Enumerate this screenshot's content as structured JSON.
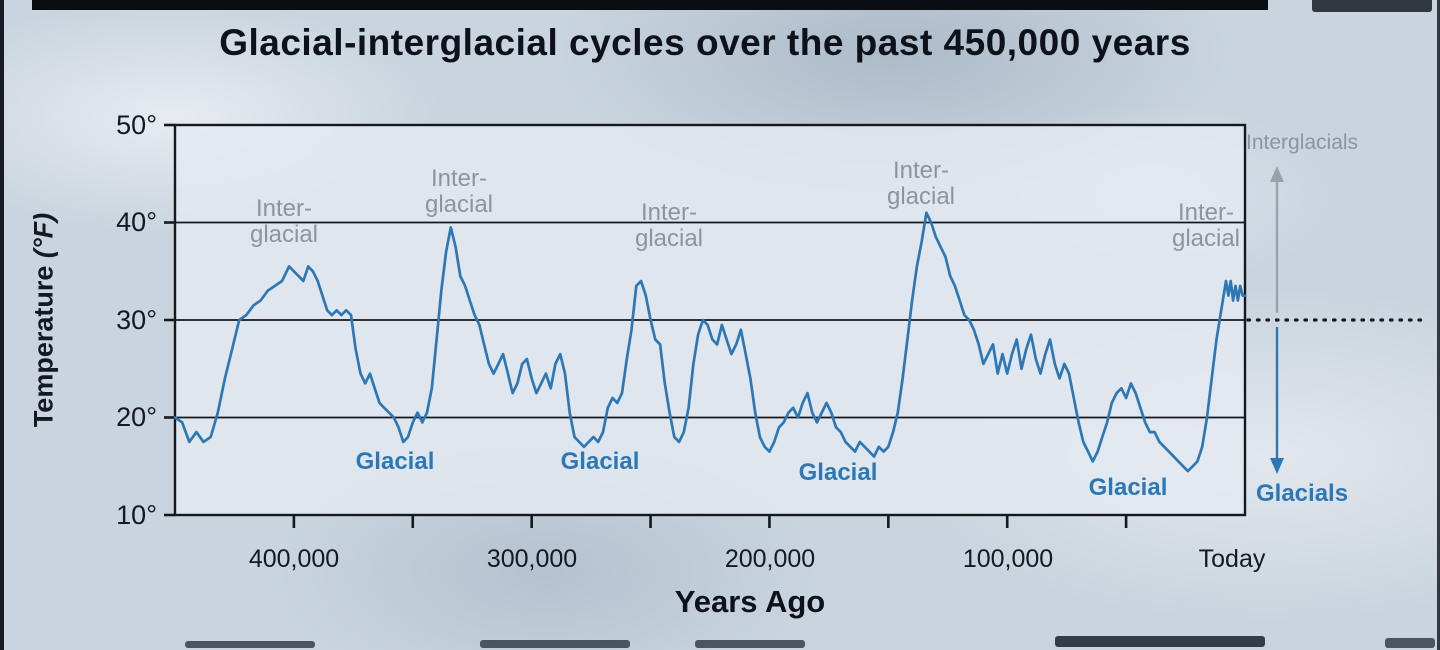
{
  "page": {
    "title": "Glacial-interglacial cycles over the past 450,000 years"
  },
  "axes": {
    "y_label_main": "Temperature",
    "y_label_unit": "(°F)",
    "y_ticks": [
      "50°",
      "40°",
      "30°",
      "20°",
      "10°"
    ],
    "x_label": "Years Ago",
    "x_tick_labels": [
      "400,000",
      "300,000",
      "200,000",
      "100,000",
      "Today"
    ]
  },
  "annotations": {
    "interglacial": {
      "line1": "Inter-",
      "line2": "glacial"
    },
    "glacial_label": "Glacial",
    "interglacials_arrow_label": "Interglacials",
    "glacials_arrow_label": "Glacials"
  },
  "colors": {
    "line": "#2e77b5",
    "glacial_text": "#2e77b5",
    "interglacial_text": "#8d949d",
    "axis": "#15181d",
    "arrow_gray": "#9aa1aa"
  },
  "chart_data": {
    "type": "line",
    "title": "Glacial-interglacial cycles over the past 450,000 years",
    "xlabel": "Years Ago",
    "ylabel": "Temperature (°F)",
    "x_unit": "ka (thousands of years before present, plotted oldest-left to Today-right)",
    "xlim_years_ago": [
      450000,
      0
    ],
    "ylim": [
      10,
      50
    ],
    "gridlines_f": [
      20,
      30,
      40
    ],
    "y_ticks_f": [
      10,
      20,
      30,
      40,
      50
    ],
    "x_ticks_ka": [
      400,
      350,
      300,
      250,
      200,
      150,
      100,
      50
    ],
    "x_tick_label_positions_ka": [
      400,
      300,
      200,
      100,
      0
    ],
    "dotted_reference_f": 30,
    "points": [
      [
        450,
        20
      ],
      [
        447,
        19.5
      ],
      [
        444,
        17.5
      ],
      [
        441,
        18.5
      ],
      [
        438,
        17.5
      ],
      [
        435,
        18
      ],
      [
        432,
        20.5
      ],
      [
        429,
        24
      ],
      [
        426,
        27
      ],
      [
        423,
        30
      ],
      [
        420,
        30.5
      ],
      [
        417,
        31.5
      ],
      [
        414,
        32
      ],
      [
        411,
        33
      ],
      [
        408,
        33.5
      ],
      [
        405,
        34
      ],
      [
        402,
        35.5
      ],
      [
        400,
        35
      ],
      [
        398,
        34.5
      ],
      [
        396,
        34
      ],
      [
        394,
        35.5
      ],
      [
        392,
        35
      ],
      [
        390,
        34
      ],
      [
        388,
        32.5
      ],
      [
        386,
        31
      ],
      [
        384,
        30.5
      ],
      [
        382,
        31
      ],
      [
        380,
        30.5
      ],
      [
        378,
        31
      ],
      [
        376,
        30.5
      ],
      [
        374,
        27
      ],
      [
        372,
        24.5
      ],
      [
        370,
        23.5
      ],
      [
        368,
        24.5
      ],
      [
        366,
        23
      ],
      [
        364,
        21.5
      ],
      [
        362,
        21
      ],
      [
        360,
        20.5
      ],
      [
        358,
        20
      ],
      [
        356,
        19
      ],
      [
        354,
        17.5
      ],
      [
        352,
        18
      ],
      [
        350,
        19.5
      ],
      [
        348,
        20.5
      ],
      [
        346,
        19.5
      ],
      [
        344,
        20.5
      ],
      [
        342,
        23
      ],
      [
        340,
        28
      ],
      [
        338,
        33
      ],
      [
        336,
        37
      ],
      [
        334,
        39.5
      ],
      [
        332,
        37.5
      ],
      [
        330,
        34.5
      ],
      [
        328,
        33.5
      ],
      [
        326,
        32
      ],
      [
        324,
        30.5
      ],
      [
        322,
        29.5
      ],
      [
        320,
        27.5
      ],
      [
        318,
        25.5
      ],
      [
        316,
        24.5
      ],
      [
        314,
        25.5
      ],
      [
        312,
        26.5
      ],
      [
        310,
        24.5
      ],
      [
        308,
        22.5
      ],
      [
        306,
        23.5
      ],
      [
        304,
        25.5
      ],
      [
        302,
        26
      ],
      [
        300,
        24
      ],
      [
        298,
        22.5
      ],
      [
        296,
        23.5
      ],
      [
        294,
        24.5
      ],
      [
        292,
        23
      ],
      [
        290,
        25.5
      ],
      [
        288,
        26.5
      ],
      [
        286,
        24.5
      ],
      [
        284,
        20.5
      ],
      [
        282,
        18
      ],
      [
        280,
        17.5
      ],
      [
        278,
        17
      ],
      [
        276,
        17.5
      ],
      [
        274,
        18
      ],
      [
        272,
        17.5
      ],
      [
        270,
        18.5
      ],
      [
        268,
        21
      ],
      [
        266,
        22
      ],
      [
        264,
        21.5
      ],
      [
        262,
        22.5
      ],
      [
        260,
        26
      ],
      [
        258,
        29
      ],
      [
        256,
        33.5
      ],
      [
        254,
        34
      ],
      [
        252,
        32.5
      ],
      [
        250,
        30
      ],
      [
        248,
        28
      ],
      [
        246,
        27.5
      ],
      [
        244,
        23.5
      ],
      [
        242,
        20.5
      ],
      [
        240,
        18
      ],
      [
        238,
        17.5
      ],
      [
        236,
        18.5
      ],
      [
        234,
        21
      ],
      [
        232,
        25.5
      ],
      [
        230,
        28.5
      ],
      [
        228,
        30
      ],
      [
        226,
        29.5
      ],
      [
        224,
        28
      ],
      [
        222,
        27.5
      ],
      [
        220,
        29.5
      ],
      [
        218,
        28
      ],
      [
        216,
        26.5
      ],
      [
        214,
        27.5
      ],
      [
        212,
        29
      ],
      [
        210,
        26.5
      ],
      [
        208,
        24
      ],
      [
        206,
        20.5
      ],
      [
        204,
        18
      ],
      [
        202,
        17
      ],
      [
        200,
        16.5
      ],
      [
        198,
        17.5
      ],
      [
        196,
        19
      ],
      [
        194,
        19.5
      ],
      [
        192,
        20.5
      ],
      [
        190,
        21
      ],
      [
        188,
        20
      ],
      [
        186,
        21.5
      ],
      [
        184,
        22.5
      ],
      [
        182,
        20.5
      ],
      [
        180,
        19.5
      ],
      [
        178,
        20.5
      ],
      [
        176,
        21.5
      ],
      [
        174,
        20.5
      ],
      [
        172,
        19
      ],
      [
        170,
        18.5
      ],
      [
        168,
        17.5
      ],
      [
        166,
        17
      ],
      [
        164,
        16.5
      ],
      [
        162,
        17.5
      ],
      [
        160,
        17
      ],
      [
        158,
        16.5
      ],
      [
        156,
        16
      ],
      [
        154,
        17
      ],
      [
        152,
        16.5
      ],
      [
        150,
        17
      ],
      [
        148,
        18.5
      ],
      [
        146,
        20.5
      ],
      [
        144,
        24
      ],
      [
        142,
        28
      ],
      [
        140,
        32
      ],
      [
        138,
        35.5
      ],
      [
        136,
        38
      ],
      [
        134,
        41
      ],
      [
        132,
        40
      ],
      [
        130,
        38.5
      ],
      [
        128,
        37.5
      ],
      [
        126,
        36.5
      ],
      [
        124,
        34.5
      ],
      [
        122,
        33.5
      ],
      [
        120,
        32
      ],
      [
        118,
        30.5
      ],
      [
        116,
        30
      ],
      [
        114,
        29
      ],
      [
        112,
        27.5
      ],
      [
        110,
        25.5
      ],
      [
        108,
        26.5
      ],
      [
        106,
        27.5
      ],
      [
        104,
        24.5
      ],
      [
        102,
        26.5
      ],
      [
        100,
        24.5
      ],
      [
        98,
        26.5
      ],
      [
        96,
        28
      ],
      [
        94,
        25
      ],
      [
        92,
        27
      ],
      [
        90,
        28.5
      ],
      [
        88,
        26
      ],
      [
        86,
        24.5
      ],
      [
        84,
        26.5
      ],
      [
        82,
        28
      ],
      [
        80,
        25.5
      ],
      [
        78,
        24
      ],
      [
        76,
        25.5
      ],
      [
        74,
        24.5
      ],
      [
        72,
        22
      ],
      [
        70,
        19.5
      ],
      [
        68,
        17.5
      ],
      [
        66,
        16.5
      ],
      [
        64,
        15.5
      ],
      [
        62,
        16.5
      ],
      [
        60,
        18
      ],
      [
        58,
        19.5
      ],
      [
        56,
        21.5
      ],
      [
        54,
        22.5
      ],
      [
        52,
        23
      ],
      [
        50,
        22
      ],
      [
        48,
        23.5
      ],
      [
        46,
        22.5
      ],
      [
        44,
        21
      ],
      [
        42,
        19.5
      ],
      [
        40,
        18.5
      ],
      [
        38,
        18.5
      ],
      [
        36,
        17.5
      ],
      [
        34,
        17
      ],
      [
        32,
        16.5
      ],
      [
        30,
        16
      ],
      [
        28,
        15.5
      ],
      [
        26,
        15
      ],
      [
        24,
        14.5
      ],
      [
        22,
        15
      ],
      [
        20,
        15.5
      ],
      [
        18,
        17
      ],
      [
        16,
        20
      ],
      [
        14,
        24
      ],
      [
        12,
        28
      ],
      [
        10,
        31
      ],
      [
        8,
        34
      ],
      [
        7,
        32.5
      ],
      [
        6,
        34
      ],
      [
        5,
        32
      ],
      [
        4,
        33.5
      ],
      [
        3,
        32
      ],
      [
        2,
        33.5
      ],
      [
        1,
        32.5
      ],
      [
        0,
        32.5
      ]
    ]
  }
}
